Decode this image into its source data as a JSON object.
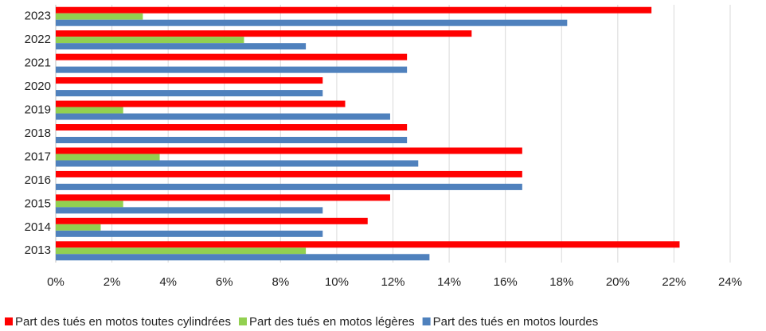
{
  "chart_data": {
    "type": "hbar",
    "categories": [
      "2023",
      "2022",
      "2021",
      "2020",
      "2019",
      "2018",
      "2017",
      "2016",
      "2015",
      "2014",
      "2013"
    ],
    "series": [
      {
        "name": "Part des tués en motos toutes cylindrées",
        "color": "#ff0000",
        "values": [
          21.2,
          14.8,
          12.5,
          9.5,
          10.3,
          12.5,
          16.6,
          16.6,
          11.9,
          11.1,
          22.2
        ]
      },
      {
        "name": "Part des tués en motos légères",
        "color": "#92d050",
        "values": [
          3.1,
          6.7,
          null,
          null,
          2.4,
          null,
          3.7,
          null,
          2.4,
          1.6,
          8.9
        ]
      },
      {
        "name": "Part des tués en motos lourdes",
        "color": "#4f81bd",
        "values": [
          18.2,
          8.9,
          12.5,
          9.5,
          11.9,
          12.5,
          12.9,
          16.6,
          9.5,
          9.5,
          13.3
        ]
      }
    ],
    "xlim": [
      0,
      24
    ],
    "xticks": [
      {
        "value": 0,
        "label": "0%"
      },
      {
        "value": 2,
        "label": "2%"
      },
      {
        "value": 4,
        "label": "4%"
      },
      {
        "value": 6,
        "label": "6%"
      },
      {
        "value": 8,
        "label": "8%"
      },
      {
        "value": 10,
        "label": "10%"
      },
      {
        "value": 12,
        "label": "12%"
      },
      {
        "value": 14,
        "label": "14%"
      },
      {
        "value": 16,
        "label": "16%"
      },
      {
        "value": 18,
        "label": "18%"
      },
      {
        "value": 20,
        "label": "20%"
      },
      {
        "value": 22,
        "label": "22%"
      },
      {
        "value": 24,
        "label": "24%"
      }
    ],
    "grid": true
  }
}
